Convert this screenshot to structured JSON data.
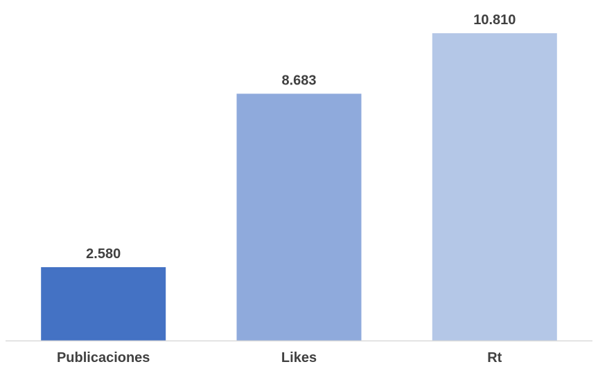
{
  "chart_data": {
    "type": "bar",
    "title": "",
    "xlabel": "",
    "ylabel": "",
    "categories": [
      "Publicaciones",
      "Likes",
      "Rt"
    ],
    "values": [
      2580,
      8683,
      10810
    ],
    "value_labels": [
      "2.580",
      "8.683",
      "10.810"
    ],
    "ylim": [
      0,
      11500
    ],
    "grid": false,
    "legend": "none",
    "colors": [
      "#4472c4",
      "#8faadc",
      "#b4c7e7"
    ],
    "axis_color": "#d9d9d9",
    "label_color": "#404040"
  }
}
